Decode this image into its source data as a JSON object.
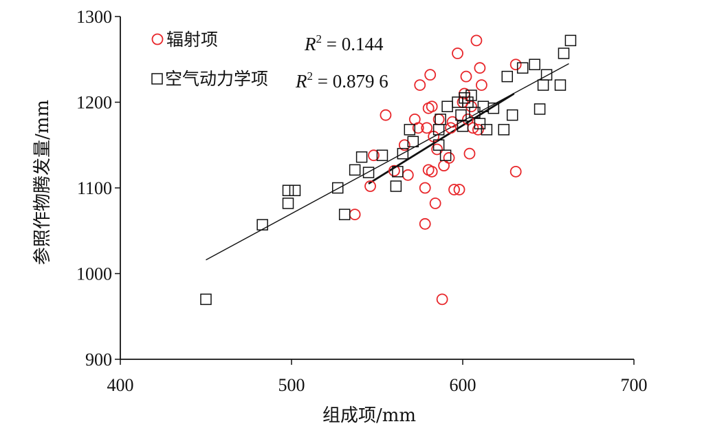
{
  "chart_data": {
    "type": "scatter",
    "xlabel": "组成项/mm",
    "ylabel": "参照作物腾发量/mm",
    "xlim": [
      400,
      700
    ],
    "ylim": [
      900,
      1300
    ],
    "xticks": [
      "400",
      "500",
      "600",
      "700"
    ],
    "yticks": [
      "900",
      "1000",
      "1100",
      "1200",
      "1300"
    ],
    "grid": false,
    "legend_position": "top-left",
    "series": [
      {
        "name": "辐射项",
        "marker": "circle",
        "color": "#e8262a",
        "r2_label": "R",
        "r2_value": " = 0.144",
        "trend": [
          [
            545,
            1105
          ],
          [
            630,
            1210
          ]
        ],
        "points": [
          [
            537,
            1069
          ],
          [
            546,
            1102
          ],
          [
            548,
            1138
          ],
          [
            555,
            1185
          ],
          [
            560,
            1120
          ],
          [
            566,
            1150
          ],
          [
            568,
            1115
          ],
          [
            572,
            1180
          ],
          [
            574,
            1170
          ],
          [
            575,
            1220
          ],
          [
            578,
            1058
          ],
          [
            578,
            1100
          ],
          [
            579,
            1170
          ],
          [
            580,
            1121
          ],
          [
            580,
            1193
          ],
          [
            581,
            1232
          ],
          [
            582,
            1195
          ],
          [
            582,
            1119
          ],
          [
            583,
            1160
          ],
          [
            584,
            1082
          ],
          [
            585,
            1145
          ],
          [
            586,
            1180
          ],
          [
            588,
            970
          ],
          [
            589,
            1126
          ],
          [
            592,
            1135
          ],
          [
            593,
            1170
          ],
          [
            594,
            1177
          ],
          [
            595,
            1098
          ],
          [
            597,
            1257
          ],
          [
            598,
            1098
          ],
          [
            600,
            1200
          ],
          [
            601,
            1210
          ],
          [
            602,
            1230
          ],
          [
            603,
            1180
          ],
          [
            604,
            1140
          ],
          [
            605,
            1195
          ],
          [
            606,
            1170
          ],
          [
            608,
            1272
          ],
          [
            609,
            1168
          ],
          [
            610,
            1240
          ],
          [
            611,
            1220
          ],
          [
            631,
            1244
          ],
          [
            631,
            1119
          ]
        ]
      },
      {
        "name": "空气动力学项",
        "marker": "square",
        "color": "#111111",
        "r2_label": "R",
        "r2_value": " = 0.879 6",
        "trend": [
          [
            450,
            1016
          ],
          [
            662,
            1245
          ]
        ],
        "points": [
          [
            450,
            970
          ],
          [
            483,
            1057
          ],
          [
            498,
            1082
          ],
          [
            498,
            1097
          ],
          [
            502,
            1097
          ],
          [
            527,
            1100
          ],
          [
            531,
            1069
          ],
          [
            537,
            1121
          ],
          [
            541,
            1136
          ],
          [
            545,
            1118
          ],
          [
            553,
            1138
          ],
          [
            561,
            1102
          ],
          [
            562,
            1119
          ],
          [
            565,
            1140
          ],
          [
            569,
            1168
          ],
          [
            571,
            1154
          ],
          [
            586,
            1150
          ],
          [
            586,
            1168
          ],
          [
            587,
            1180
          ],
          [
            590,
            1138
          ],
          [
            591,
            1195
          ],
          [
            597,
            1200
          ],
          [
            599,
            1185
          ],
          [
            600,
            1172
          ],
          [
            601,
            1205
          ],
          [
            603,
            1200
          ],
          [
            605,
            1208
          ],
          [
            607,
            1188
          ],
          [
            610,
            1175
          ],
          [
            612,
            1195
          ],
          [
            614,
            1168
          ],
          [
            618,
            1193
          ],
          [
            624,
            1168
          ],
          [
            626,
            1230
          ],
          [
            629,
            1185
          ],
          [
            635,
            1240
          ],
          [
            642,
            1244
          ],
          [
            645,
            1192
          ],
          [
            647,
            1220
          ],
          [
            649,
            1232
          ],
          [
            657,
            1220
          ],
          [
            659,
            1257
          ],
          [
            663,
            1272
          ]
        ]
      }
    ]
  }
}
